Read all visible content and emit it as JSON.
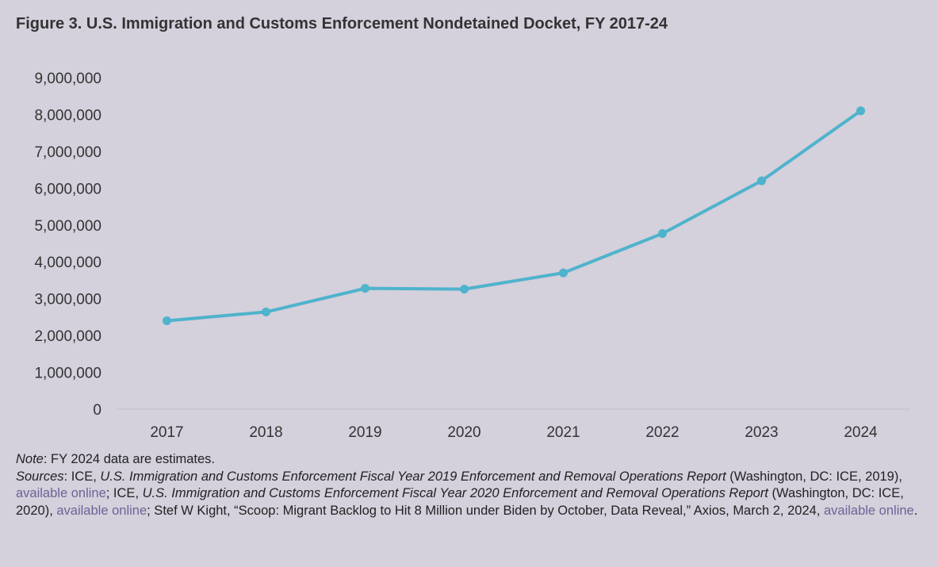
{
  "figure_title": "Figure 3. U.S. Immigration and Customs Enforcement Nondetained Docket, FY 2017-24",
  "colors": {
    "background": "#d4d0dc",
    "line": "#4fb3cc",
    "link": "#6d6496"
  },
  "chart_data": {
    "type": "line",
    "title": "Figure 3. U.S. Immigration and Customs Enforcement Nondetained Docket, FY 2017-24",
    "xlabel": "",
    "ylabel": "",
    "categories": [
      "2017",
      "2018",
      "2019",
      "2020",
      "2021",
      "2022",
      "2023",
      "2024"
    ],
    "series": [
      {
        "values": [
          2400000,
          2640000,
          3280000,
          3260000,
          3700000,
          4770000,
          6200000,
          8100000
        ]
      }
    ],
    "ylim": [
      0,
      9000000
    ],
    "yticks": [
      0,
      1000000,
      2000000,
      3000000,
      4000000,
      5000000,
      6000000,
      7000000,
      8000000,
      9000000
    ],
    "ytick_labels": [
      "0",
      "1,000,000",
      "2,000,000",
      "3,000,000",
      "4,000,000",
      "5,000,000",
      "6,000,000",
      "7,000,000",
      "8,000,000",
      "9,000,000"
    ],
    "grid": false,
    "markers": true
  },
  "notes": {
    "note_label": "Note",
    "note_text": ": FY 2024 data are estimates.",
    "sources_label": "Sources",
    "s1_a": ": ICE, ",
    "s1_title": "U.S. Immigration and Customs Enforcement Fiscal Year 2019 Enforcement and Removal Operations Report",
    "s1_b": " (Washington, DC: ICE, 2019), ",
    "s1_link": "available online",
    "s2_a": "; ICE, ",
    "s2_title": "U.S. Immigration and Customs Enforcement Fiscal Year 2020 Enforcement and Removal Operations Report",
    "s2_b": " (Washington, DC: ICE, 2020), ",
    "s2_link": "available online",
    "s3_a": "; Stef W Kight, “Scoop: Migrant Backlog to Hit 8 Million under Biden by October, Data Reveal,” Axios, March 2, 2024, ",
    "s3_link": "available online",
    "s3_b": "."
  }
}
